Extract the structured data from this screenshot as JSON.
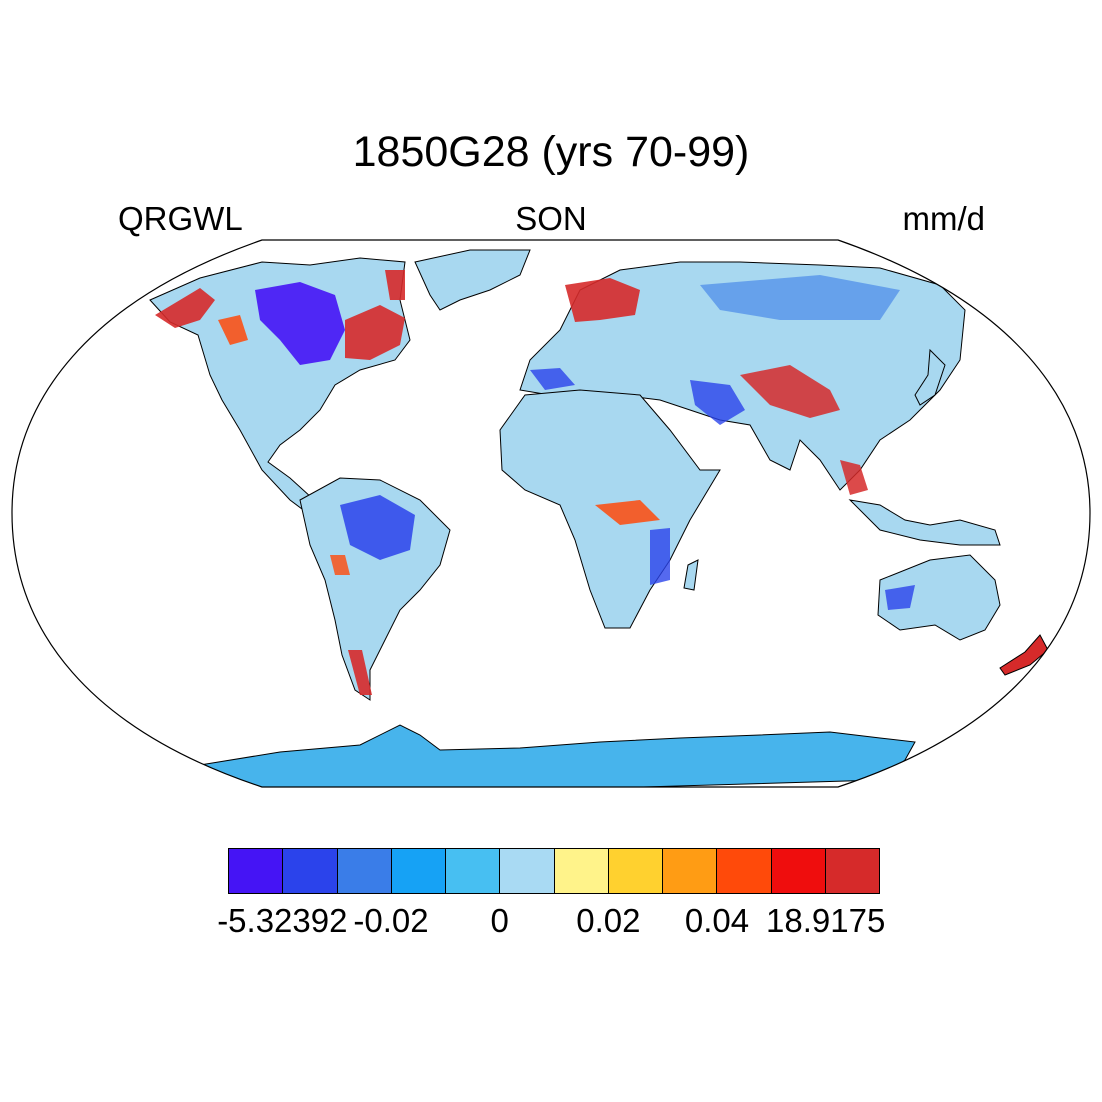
{
  "title": "1850G28 (yrs 70-99)",
  "subtitle_left": "QRGWL",
  "subtitle_center": "SON",
  "subtitle_right": "mm/d",
  "colors": {
    "ocean": "#ffffff",
    "coastline": "#000000",
    "land_default": "#a8d8f0",
    "antarctica": "#47b4ec"
  },
  "colorbar": {
    "colors": [
      "#4514f5",
      "#2b43eb",
      "#3a7de8",
      "#16a2f5",
      "#47bff2",
      "#a9daf3",
      "#fff38a",
      "#ffd12f",
      "#ff9c14",
      "#ff4a0a",
      "#ef0d0d",
      "#d62a2a"
    ],
    "tick_labels": [
      "-5.32392",
      "-0.02",
      "0",
      "0.02",
      "0.04",
      "18.9175"
    ]
  },
  "regions": [
    {
      "name": "canada-shield",
      "level": 0
    },
    {
      "name": "canada-east",
      "level": 11
    },
    {
      "name": "alaska",
      "level": 11
    },
    {
      "name": "rockies",
      "level": 10
    },
    {
      "name": "amazon",
      "level": 0
    },
    {
      "name": "scandinavia",
      "level": 11
    },
    {
      "name": "tibet",
      "level": 11
    },
    {
      "name": "central-africa",
      "level": 10
    },
    {
      "name": "patagonia",
      "level": 11
    },
    {
      "name": "new-zealand",
      "level": 11
    }
  ]
}
